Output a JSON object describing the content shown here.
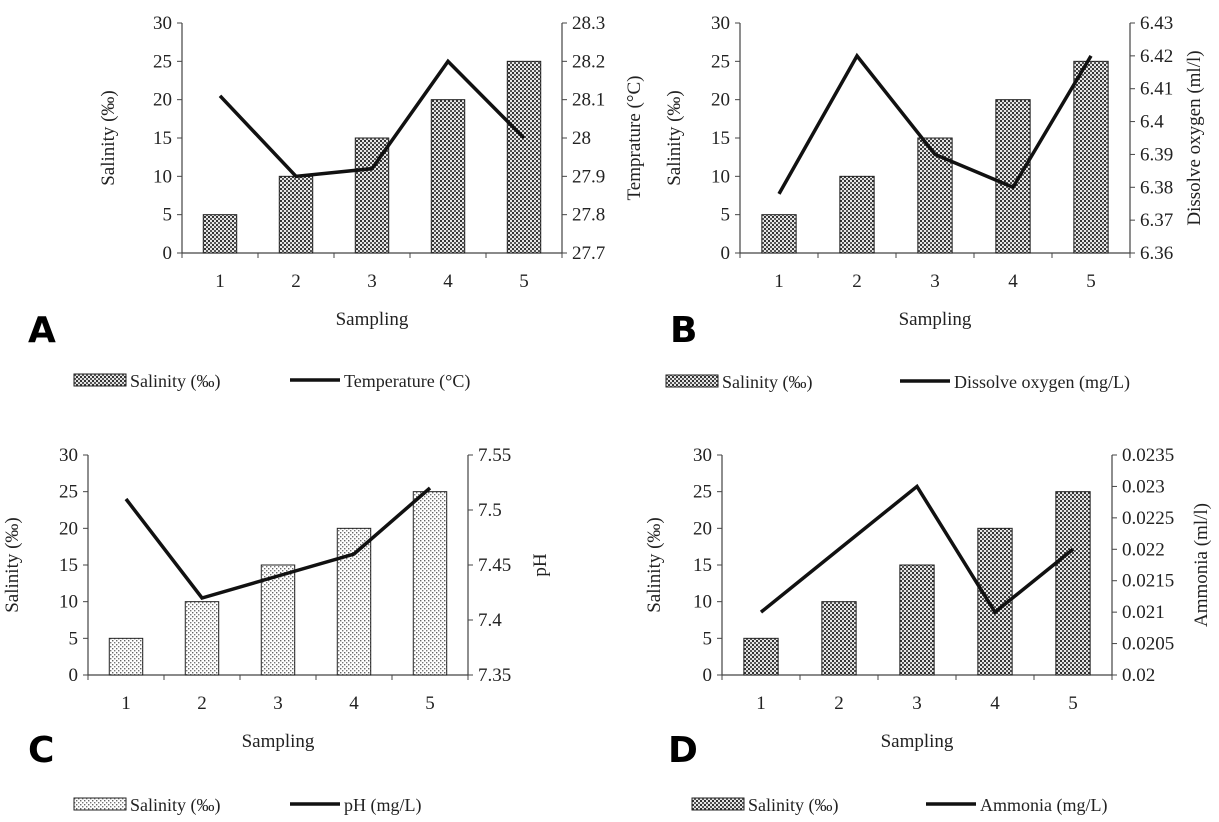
{
  "chart_data": [
    {
      "type": "bar",
      "panel_label": "A",
      "categories": [
        "1",
        "2",
        "3",
        "4",
        "5"
      ],
      "xlabel": "Sampling",
      "y_left": {
        "label": "Salinity (‰)",
        "lim": [
          0,
          30
        ],
        "ticks": [
          "0",
          "5",
          "10",
          "15",
          "20",
          "25",
          "30"
        ]
      },
      "y_right": {
        "label": "Temprature (°C)",
        "lim": [
          27.7,
          28.3
        ],
        "ticks": [
          "27.7",
          "27.8",
          "27.9",
          "28",
          "28.1",
          "28.2",
          "28.3"
        ]
      },
      "series": [
        {
          "name": "Salinity (‰)",
          "type": "bar",
          "axis": "left",
          "values": [
            5,
            10,
            15,
            20,
            25
          ],
          "pattern": "dense"
        },
        {
          "name": "Temperature (°C)",
          "type": "line",
          "axis": "right",
          "values": [
            28.11,
            27.9,
            27.92,
            28.2,
            28.0
          ]
        }
      ]
    },
    {
      "type": "bar",
      "panel_label": "B",
      "categories": [
        "1",
        "2",
        "3",
        "4",
        "5"
      ],
      "xlabel": "Sampling",
      "y_left": {
        "label": "Salinity (‰)",
        "lim": [
          0,
          30
        ],
        "ticks": [
          "0",
          "5",
          "10",
          "15",
          "20",
          "25",
          "30"
        ]
      },
      "y_right": {
        "label": "Dissolve oxygen (ml/l)",
        "lim": [
          6.36,
          6.43
        ],
        "ticks": [
          "6.36",
          "6.37",
          "6.38",
          "6.39",
          "6.4",
          "6.41",
          "6.42",
          "6.43"
        ]
      },
      "series": [
        {
          "name": "Salinity (‰)",
          "type": "bar",
          "axis": "left",
          "values": [
            5,
            10,
            15,
            20,
            25
          ],
          "pattern": "dense"
        },
        {
          "name": "Dissolve oxygen (mg/L)",
          "type": "line",
          "axis": "right",
          "values": [
            6.378,
            6.42,
            6.39,
            6.38,
            6.42
          ]
        }
      ]
    },
    {
      "type": "bar",
      "panel_label": "C",
      "categories": [
        "1",
        "2",
        "3",
        "4",
        "5"
      ],
      "xlabel": "Sampling",
      "y_left": {
        "label": "Salinity (‰)",
        "lim": [
          0,
          30
        ],
        "ticks": [
          "0",
          "5",
          "10",
          "15",
          "20",
          "25",
          "30"
        ]
      },
      "y_right": {
        "label": "pH",
        "lim": [
          7.35,
          7.55
        ],
        "ticks": [
          "7.35",
          "7.4",
          "7.45",
          "7.5",
          "7.55"
        ]
      },
      "series": [
        {
          "name": "Salinity (‰)",
          "type": "bar",
          "axis": "left",
          "values": [
            5,
            10,
            15,
            20,
            25
          ],
          "pattern": "light"
        },
        {
          "name": "pH (mg/L)",
          "type": "line",
          "axis": "right",
          "values": [
            7.51,
            7.42,
            7.44,
            7.46,
            7.52
          ]
        }
      ]
    },
    {
      "type": "bar",
      "panel_label": "D",
      "categories": [
        "1",
        "2",
        "3",
        "4",
        "5"
      ],
      "xlabel": "Sampling",
      "y_left": {
        "label": "Salinity (‰)",
        "lim": [
          0,
          30
        ],
        "ticks": [
          "0",
          "5",
          "10",
          "15",
          "20",
          "25",
          "30"
        ]
      },
      "y_right": {
        "label": "Ammonia (ml/l)",
        "lim": [
          0.02,
          0.0235
        ],
        "ticks": [
          "0.02",
          "0.0205",
          "0.021",
          "0.0215",
          "0.022",
          "0.0225",
          "0.023",
          "0.0235"
        ]
      },
      "series": [
        {
          "name": "Salinity (‰)",
          "type": "bar",
          "axis": "left",
          "values": [
            5,
            10,
            15,
            20,
            25
          ],
          "pattern": "dense"
        },
        {
          "name": "Ammonia (mg/L)",
          "type": "line",
          "axis": "right",
          "values": [
            0.021,
            0.022,
            0.023,
            0.021,
            0.022
          ]
        }
      ]
    }
  ]
}
